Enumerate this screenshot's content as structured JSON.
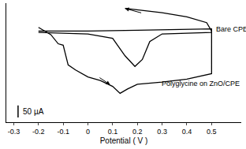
{
  "chart_data": {
    "type": "line",
    "x_label": "Potential ( V )",
    "xlim": [
      -0.33,
      0.62
    ],
    "xticks": [
      -0.3,
      -0.2,
      -0.1,
      0,
      0.1,
      0.2,
      0.3,
      0.4,
      0.5
    ],
    "ylim": [
      -320,
      175
    ],
    "tick_labels": "x",
    "grid": false,
    "color": "#000000",
    "scale_bar": {
      "label": "50 µA",
      "value": 50
    },
    "series": [
      {
        "name": "Bare CPE",
        "color": "#000000",
        "x": [
          -0.2,
          0,
          0.2,
          0.4,
          0.5,
          0.5,
          0.3,
          0.25,
          0.22,
          0.19,
          0.15,
          0.1,
          0,
          -0.2
        ],
        "values": [
          59,
          59,
          62,
          65,
          68,
          53,
          47,
          15,
          -59,
          -88,
          -44,
          29,
          47,
          53
        ]
      },
      {
        "name": "Polyglycine on ZnO/CPE",
        "color": "#000000",
        "x": [
          -0.2,
          -0.15,
          -0.12,
          -0.1,
          -0.08,
          -0.05,
          0,
          0.05,
          0.1,
          0.13,
          0.16,
          0.2,
          0.3,
          0.4,
          0.5,
          0.5,
          0.48,
          0.4,
          0.3,
          0.2,
          0.15
        ],
        "values": [
          74,
          44,
          6,
          0,
          -82,
          -103,
          -132,
          -147,
          -171,
          -200,
          -182,
          -162,
          -153,
          -141,
          -118,
          59,
          94,
          118,
          135,
          147,
          153
        ]
      }
    ]
  }
}
